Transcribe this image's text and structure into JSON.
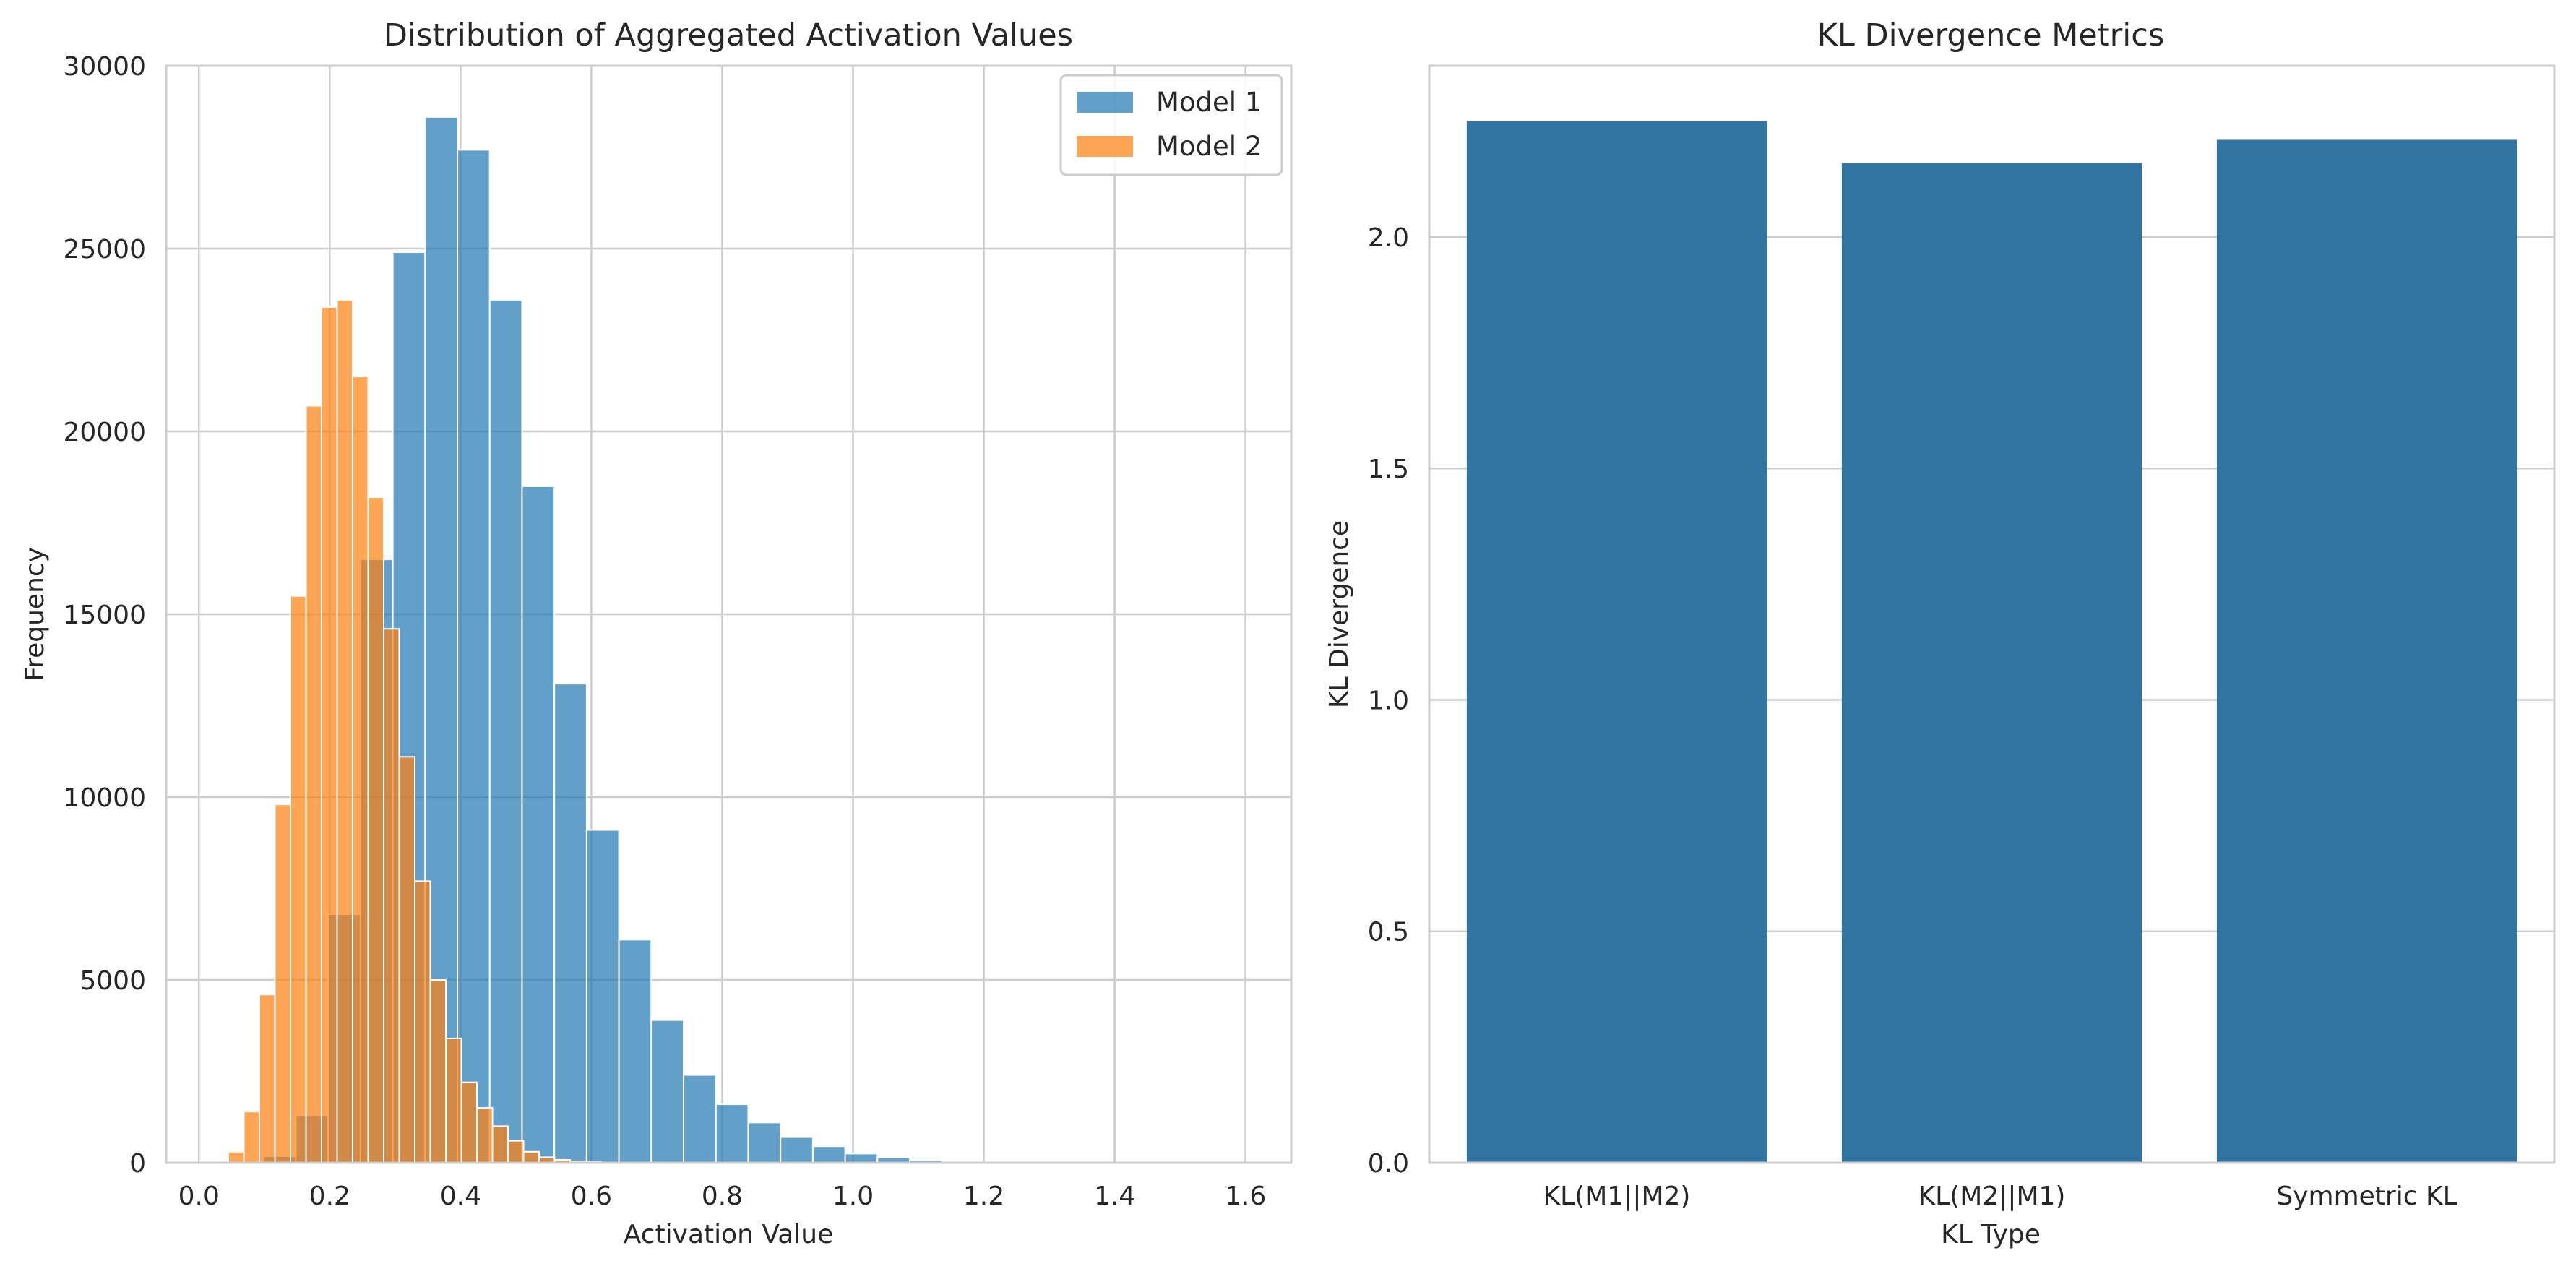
{
  "figure": {
    "background": "#ffffff",
    "plot_background": "#ffffff",
    "grid_color": "#cccccc",
    "spine_color": "#cccccc"
  },
  "chart_data": [
    {
      "type": "histogram",
      "title": "Distribution of Aggregated Activation Values",
      "xlabel": "Activation Value",
      "ylabel": "Frequency",
      "xlim": [
        -0.05,
        1.67
      ],
      "ylim": [
        0,
        30000
      ],
      "xticks": [
        0.0,
        0.2,
        0.4,
        0.6,
        0.8,
        1.0,
        1.2,
        1.4,
        1.6
      ],
      "xtick_labels": [
        "0.0",
        "0.2",
        "0.4",
        "0.6",
        "0.8",
        "1.0",
        "1.2",
        "1.4",
        "1.6"
      ],
      "yticks": [
        0,
        5000,
        10000,
        15000,
        20000,
        25000,
        30000
      ],
      "ytick_labels": [
        "0",
        "5000",
        "10000",
        "15000",
        "20000",
        "25000",
        "30000"
      ],
      "grid": true,
      "legend": "top-right",
      "series": [
        {
          "name": "Model 1",
          "color": "#1f77b4",
          "alpha": 0.7,
          "bin_start": 0.0,
          "bin_width": 0.0494,
          "values": [
            10,
            50,
            180,
            1300,
            6800,
            16500,
            24900,
            28600,
            27700,
            23600,
            18500,
            13100,
            9100,
            6100,
            3900,
            2400,
            1600,
            1100,
            700,
            450,
            250,
            140,
            70,
            40,
            20,
            10,
            6,
            4,
            2,
            1,
            1,
            1
          ]
        },
        {
          "name": "Model 2",
          "color": "#ff7f0e",
          "alpha": 0.7,
          "bin_start": 0.045,
          "bin_width": 0.02375,
          "values": [
            300,
            1400,
            4600,
            9800,
            15500,
            20700,
            23400,
            23600,
            21500,
            18200,
            14600,
            11100,
            7700,
            5000,
            3400,
            2200,
            1500,
            1000,
            600,
            300,
            150,
            80,
            40,
            20
          ]
        }
      ]
    },
    {
      "type": "bar",
      "title": "KL Divergence Metrics",
      "xlabel": "KL Type",
      "ylabel": "KL Divergence",
      "categories": [
        "KL(M1||M2)",
        "KL(M2||M1)",
        "Symmetric KL"
      ],
      "values": [
        2.25,
        2.16,
        2.21
      ],
      "color": "#3274a1",
      "ylim": [
        0,
        2.37
      ],
      "yticks": [
        0.0,
        0.5,
        1.0,
        1.5,
        2.0
      ],
      "ytick_labels": [
        "0.0",
        "0.5",
        "1.0",
        "1.5",
        "2.0"
      ],
      "grid": "horizontal"
    }
  ]
}
